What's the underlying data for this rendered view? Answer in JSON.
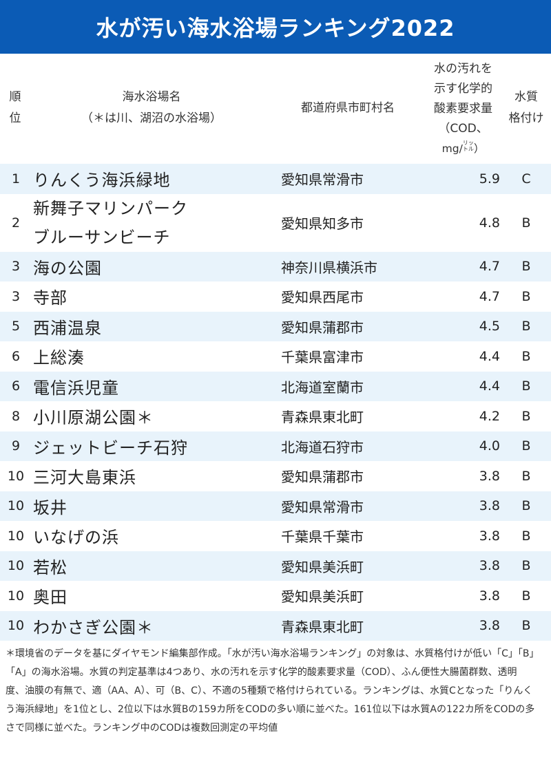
{
  "title": "水が汚い海水浴場ランキング2022",
  "header": {
    "rank": [
      "順",
      "位"
    ],
    "name": [
      "海水浴場名",
      "（＊は川、湖沼の水浴場）"
    ],
    "pref": "都道府県市町村名",
    "cod": [
      "水の汚れを",
      "示す化学的",
      "酸素要求量",
      "（COD、"
    ],
    "cod_unit_main": "mg/",
    "cod_unit_small": [
      "リッ",
      "トル"
    ],
    "cod_unit_close": "）",
    "grade": [
      "水質",
      "格付け"
    ]
  },
  "rows": [
    {
      "rank": "1",
      "name": [
        "りんくう海浜緑地"
      ],
      "pref": "愛知県常滑市",
      "cod": "5.9",
      "grade": "C"
    },
    {
      "rank": "2",
      "name": [
        "新舞子マリンパーク",
        "ブルーサンビーチ"
      ],
      "pref": "愛知県知多市",
      "cod": "4.8",
      "grade": "B"
    },
    {
      "rank": "3",
      "name": [
        "海の公園"
      ],
      "pref": "神奈川県横浜市",
      "cod": "4.7",
      "grade": "B"
    },
    {
      "rank": "3",
      "name": [
        "寺部"
      ],
      "pref": "愛知県西尾市",
      "cod": "4.7",
      "grade": "B"
    },
    {
      "rank": "5",
      "name": [
        "西浦温泉"
      ],
      "pref": "愛知県蒲郡市",
      "cod": "4.5",
      "grade": "B"
    },
    {
      "rank": "6",
      "name": [
        "上総湊"
      ],
      "pref": "千葉県富津市",
      "cod": "4.4",
      "grade": "B"
    },
    {
      "rank": "6",
      "name": [
        "電信浜児童"
      ],
      "pref": "北海道室蘭市",
      "cod": "4.4",
      "grade": "B"
    },
    {
      "rank": "8",
      "name": [
        "小川原湖公園＊"
      ],
      "pref": "青森県東北町",
      "cod": "4.2",
      "grade": "B"
    },
    {
      "rank": "9",
      "name": [
        "ジェットビーチ石狩"
      ],
      "pref": "北海道石狩市",
      "cod": "4.0",
      "grade": "B"
    },
    {
      "rank": "10",
      "name": [
        "三河大島東浜"
      ],
      "pref": "愛知県蒲郡市",
      "cod": "3.8",
      "grade": "B"
    },
    {
      "rank": "10",
      "name": [
        "坂井"
      ],
      "pref": "愛知県常滑市",
      "cod": "3.8",
      "grade": "B"
    },
    {
      "rank": "10",
      "name": [
        "いなげの浜"
      ],
      "pref": "千葉県千葉市",
      "cod": "3.8",
      "grade": "B"
    },
    {
      "rank": "10",
      "name": [
        "若松"
      ],
      "pref": "愛知県美浜町",
      "cod": "3.8",
      "grade": "B"
    },
    {
      "rank": "10",
      "name": [
        "奥田"
      ],
      "pref": "愛知県美浜町",
      "cod": "3.8",
      "grade": "B"
    },
    {
      "rank": "10",
      "name": [
        "わかさぎ公園＊"
      ],
      "pref": "青森県東北町",
      "cod": "3.8",
      "grade": "B"
    }
  ],
  "footnote": "＊環境省のデータを基にダイヤモンド編集部作成。「水が汚い海水浴場ランキング」の対象は、水質格付けが低い「C」「B」「A」の海水浴場。水質の判定基準は4つあり、水の汚れを示す化学的酸素要求量（COD）、ふん便性大腸菌群数、透明度、油膜の有無で、適（AA、A）、可（B、C）、不適の5種類で格付けられている。ランキングは、水質Cとなった「りんくう海浜緑地」を1位とし、2位以下は水質Bの159カ所をCODの多い順に並べた。161位以下は水質Aの122カ所をCODの多さで同様に並べた。ランキング中のCODは複数回測定の平均値",
  "colors": {
    "title_bg": "#0b5bb5",
    "row_alt_bg": "#e8f3fb",
    "title_text": "#ffffff"
  }
}
